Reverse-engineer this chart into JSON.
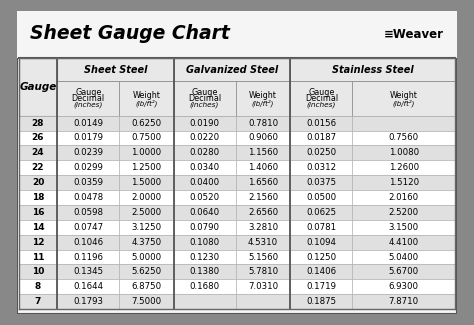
{
  "title": "Sheet Gauge Chart",
  "bg_outer": "#888888",
  "bg_inner": "#f5f5f5",
  "bg_title": "#f5f5f5",
  "bg_row_even": "#ffffff",
  "bg_row_odd": "#e0e0e0",
  "bg_header_section": "#cccccc",
  "bg_header_sub": "#e8e8e8",
  "border_color": "#555555",
  "gauges": [
    28,
    26,
    24,
    22,
    20,
    18,
    16,
    14,
    12,
    11,
    10,
    8,
    7
  ],
  "sheet_steel_decimal": [
    "0.0149",
    "0.0179",
    "0.0239",
    "0.0299",
    "0.0359",
    "0.0478",
    "0.0598",
    "0.0747",
    "0.1046",
    "0.1196",
    "0.1345",
    "0.1644",
    "0.1793"
  ],
  "sheet_steel_weight": [
    "0.6250",
    "0.7500",
    "1.0000",
    "1.2500",
    "1.5000",
    "2.0000",
    "2.5000",
    "3.1250",
    "4.3750",
    "5.0000",
    "5.6250",
    "6.8750",
    "7.5000"
  ],
  "galvanized_decimal": [
    "0.0190",
    "0.0220",
    "0.0280",
    "0.0340",
    "0.0400",
    "0.0520",
    "0.0640",
    "0.0790",
    "0.1080",
    "0.1230",
    "0.1380",
    "0.1680",
    ""
  ],
  "galvanized_weight": [
    "0.7810",
    "0.9060",
    "1.1560",
    "1.4060",
    "1.6560",
    "2.1560",
    "2.6560",
    "3.2810",
    "4.5310",
    "5.1560",
    "5.7810",
    "7.0310",
    ""
  ],
  "stainless_decimal": [
    "0.0156",
    "0.0187",
    "0.0250",
    "0.0312",
    "0.0375",
    "0.0500",
    "0.0625",
    "0.0781",
    "0.1094",
    "0.1250",
    "0.1406",
    "0.1719",
    "0.1875"
  ],
  "stainless_weight": [
    "",
    "0.7560",
    "1.0080",
    "1.2600",
    "1.5120",
    "2.0160",
    "2.5200",
    "3.1500",
    "4.4100",
    "5.0400",
    "5.6700",
    "6.9300",
    "7.8710"
  ],
  "fig_width": 4.74,
  "fig_height": 3.25,
  "dpi": 100
}
